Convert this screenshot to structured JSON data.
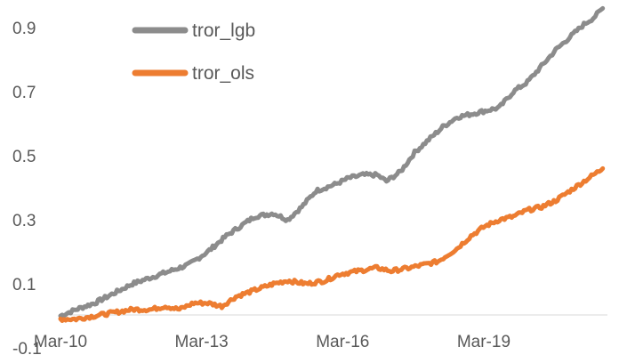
{
  "chart_data": {
    "type": "line",
    "title": "",
    "xlabel": "",
    "ylabel": "",
    "ylim": [
      -0.1,
      0.9
    ],
    "y_ticks": [
      "-0.1",
      "0.1",
      "0.3",
      "0.5",
      "0.7",
      "0.9"
    ],
    "y_tick_values": [
      -0.1,
      0.1,
      0.3,
      0.5,
      0.7,
      0.9
    ],
    "x_ticks": [
      "Mar-10",
      "Mar-13",
      "Mar-16",
      "Mar-19"
    ],
    "x_tick_values": [
      2010.17,
      2013.17,
      2016.17,
      2019.17
    ],
    "xlim": [
      2010.17,
      2021.8
    ],
    "grid": false,
    "legend_position": "top-left",
    "series": [
      {
        "name": "tror_lgb",
        "color": "#8c8c8c",
        "points": [
          [
            2010.17,
            0.0
          ],
          [
            2010.5,
            0.02
          ],
          [
            2010.9,
            0.04
          ],
          [
            2011.3,
            0.07
          ],
          [
            2011.7,
            0.1
          ],
          [
            2012.1,
            0.12
          ],
          [
            2012.5,
            0.14
          ],
          [
            2012.9,
            0.16
          ],
          [
            2013.3,
            0.2
          ],
          [
            2013.7,
            0.25
          ],
          [
            2014.0,
            0.28
          ],
          [
            2014.3,
            0.31
          ],
          [
            2014.7,
            0.32
          ],
          [
            2015.0,
            0.3
          ],
          [
            2015.3,
            0.34
          ],
          [
            2015.6,
            0.39
          ],
          [
            2016.0,
            0.41
          ],
          [
            2016.3,
            0.43
          ],
          [
            2016.6,
            0.44
          ],
          [
            2016.9,
            0.44
          ],
          [
            2017.1,
            0.42
          ],
          [
            2017.4,
            0.45
          ],
          [
            2017.7,
            0.51
          ],
          [
            2018.0,
            0.55
          ],
          [
            2018.3,
            0.59
          ],
          [
            2018.6,
            0.62
          ],
          [
            2018.9,
            0.63
          ],
          [
            2019.2,
            0.64
          ],
          [
            2019.5,
            0.65
          ],
          [
            2019.8,
            0.7
          ],
          [
            2020.1,
            0.73
          ],
          [
            2020.4,
            0.78
          ],
          [
            2020.7,
            0.83
          ],
          [
            2021.0,
            0.87
          ],
          [
            2021.3,
            0.91
          ],
          [
            2021.5,
            0.93
          ],
          [
            2021.7,
            0.96
          ]
        ]
      },
      {
        "name": "tror_ols",
        "color": "#ed7d31",
        "points": [
          [
            2010.17,
            -0.01
          ],
          [
            2010.5,
            -0.01
          ],
          [
            2010.9,
            0.0
          ],
          [
            2011.3,
            0.01
          ],
          [
            2011.7,
            0.02
          ],
          [
            2012.1,
            0.02
          ],
          [
            2012.4,
            0.03
          ],
          [
            2012.7,
            0.02
          ],
          [
            2013.0,
            0.04
          ],
          [
            2013.3,
            0.04
          ],
          [
            2013.6,
            0.03
          ],
          [
            2013.9,
            0.06
          ],
          [
            2014.3,
            0.08
          ],
          [
            2014.7,
            0.1
          ],
          [
            2015.0,
            0.11
          ],
          [
            2015.4,
            0.1
          ],
          [
            2015.8,
            0.11
          ],
          [
            2016.1,
            0.13
          ],
          [
            2016.5,
            0.14
          ],
          [
            2016.9,
            0.15
          ],
          [
            2017.2,
            0.14
          ],
          [
            2017.6,
            0.15
          ],
          [
            2017.9,
            0.16
          ],
          [
            2018.2,
            0.17
          ],
          [
            2018.6,
            0.21
          ],
          [
            2018.9,
            0.25
          ],
          [
            2019.2,
            0.28
          ],
          [
            2019.5,
            0.3
          ],
          [
            2019.8,
            0.31
          ],
          [
            2020.1,
            0.33
          ],
          [
            2020.4,
            0.34
          ],
          [
            2020.7,
            0.36
          ],
          [
            2021.0,
            0.39
          ],
          [
            2021.3,
            0.42
          ],
          [
            2021.5,
            0.44
          ],
          [
            2021.7,
            0.46
          ]
        ]
      }
    ]
  }
}
